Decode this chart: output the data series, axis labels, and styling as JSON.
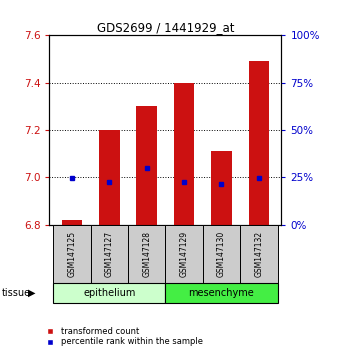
{
  "title": "GDS2699 / 1441929_at",
  "samples": [
    "GSM147125",
    "GSM147127",
    "GSM147128",
    "GSM147129",
    "GSM147130",
    "GSM147132"
  ],
  "red_values": [
    6.82,
    7.2,
    7.3,
    7.4,
    7.11,
    7.49
  ],
  "blue_values": [
    24.5,
    22.5,
    30.0,
    22.5,
    21.5,
    24.5
  ],
  "ylim_left": [
    6.8,
    7.6
  ],
  "ylim_right": [
    0,
    100
  ],
  "yticks_left": [
    6.8,
    7.0,
    7.2,
    7.4,
    7.6
  ],
  "yticks_right": [
    0,
    25,
    50,
    75,
    100
  ],
  "tissue_groups": [
    {
      "label": "epithelium",
      "start": 0,
      "end": 3,
      "color": "#ccffcc"
    },
    {
      "label": "mesenchyme",
      "start": 3,
      "end": 6,
      "color": "#44ee44"
    }
  ],
  "bar_color": "#cc1111",
  "dot_color": "#0000cc",
  "bar_width": 0.55,
  "background_color": "#ffffff",
  "tick_label_box_color": "#cccccc",
  "left_tick_color": "#cc1111",
  "right_tick_color": "#0000cc",
  "legend_red_label": "transformed count",
  "legend_blue_label": "percentile rank within the sample",
  "tissue_label": "tissue",
  "baseline": 6.8
}
